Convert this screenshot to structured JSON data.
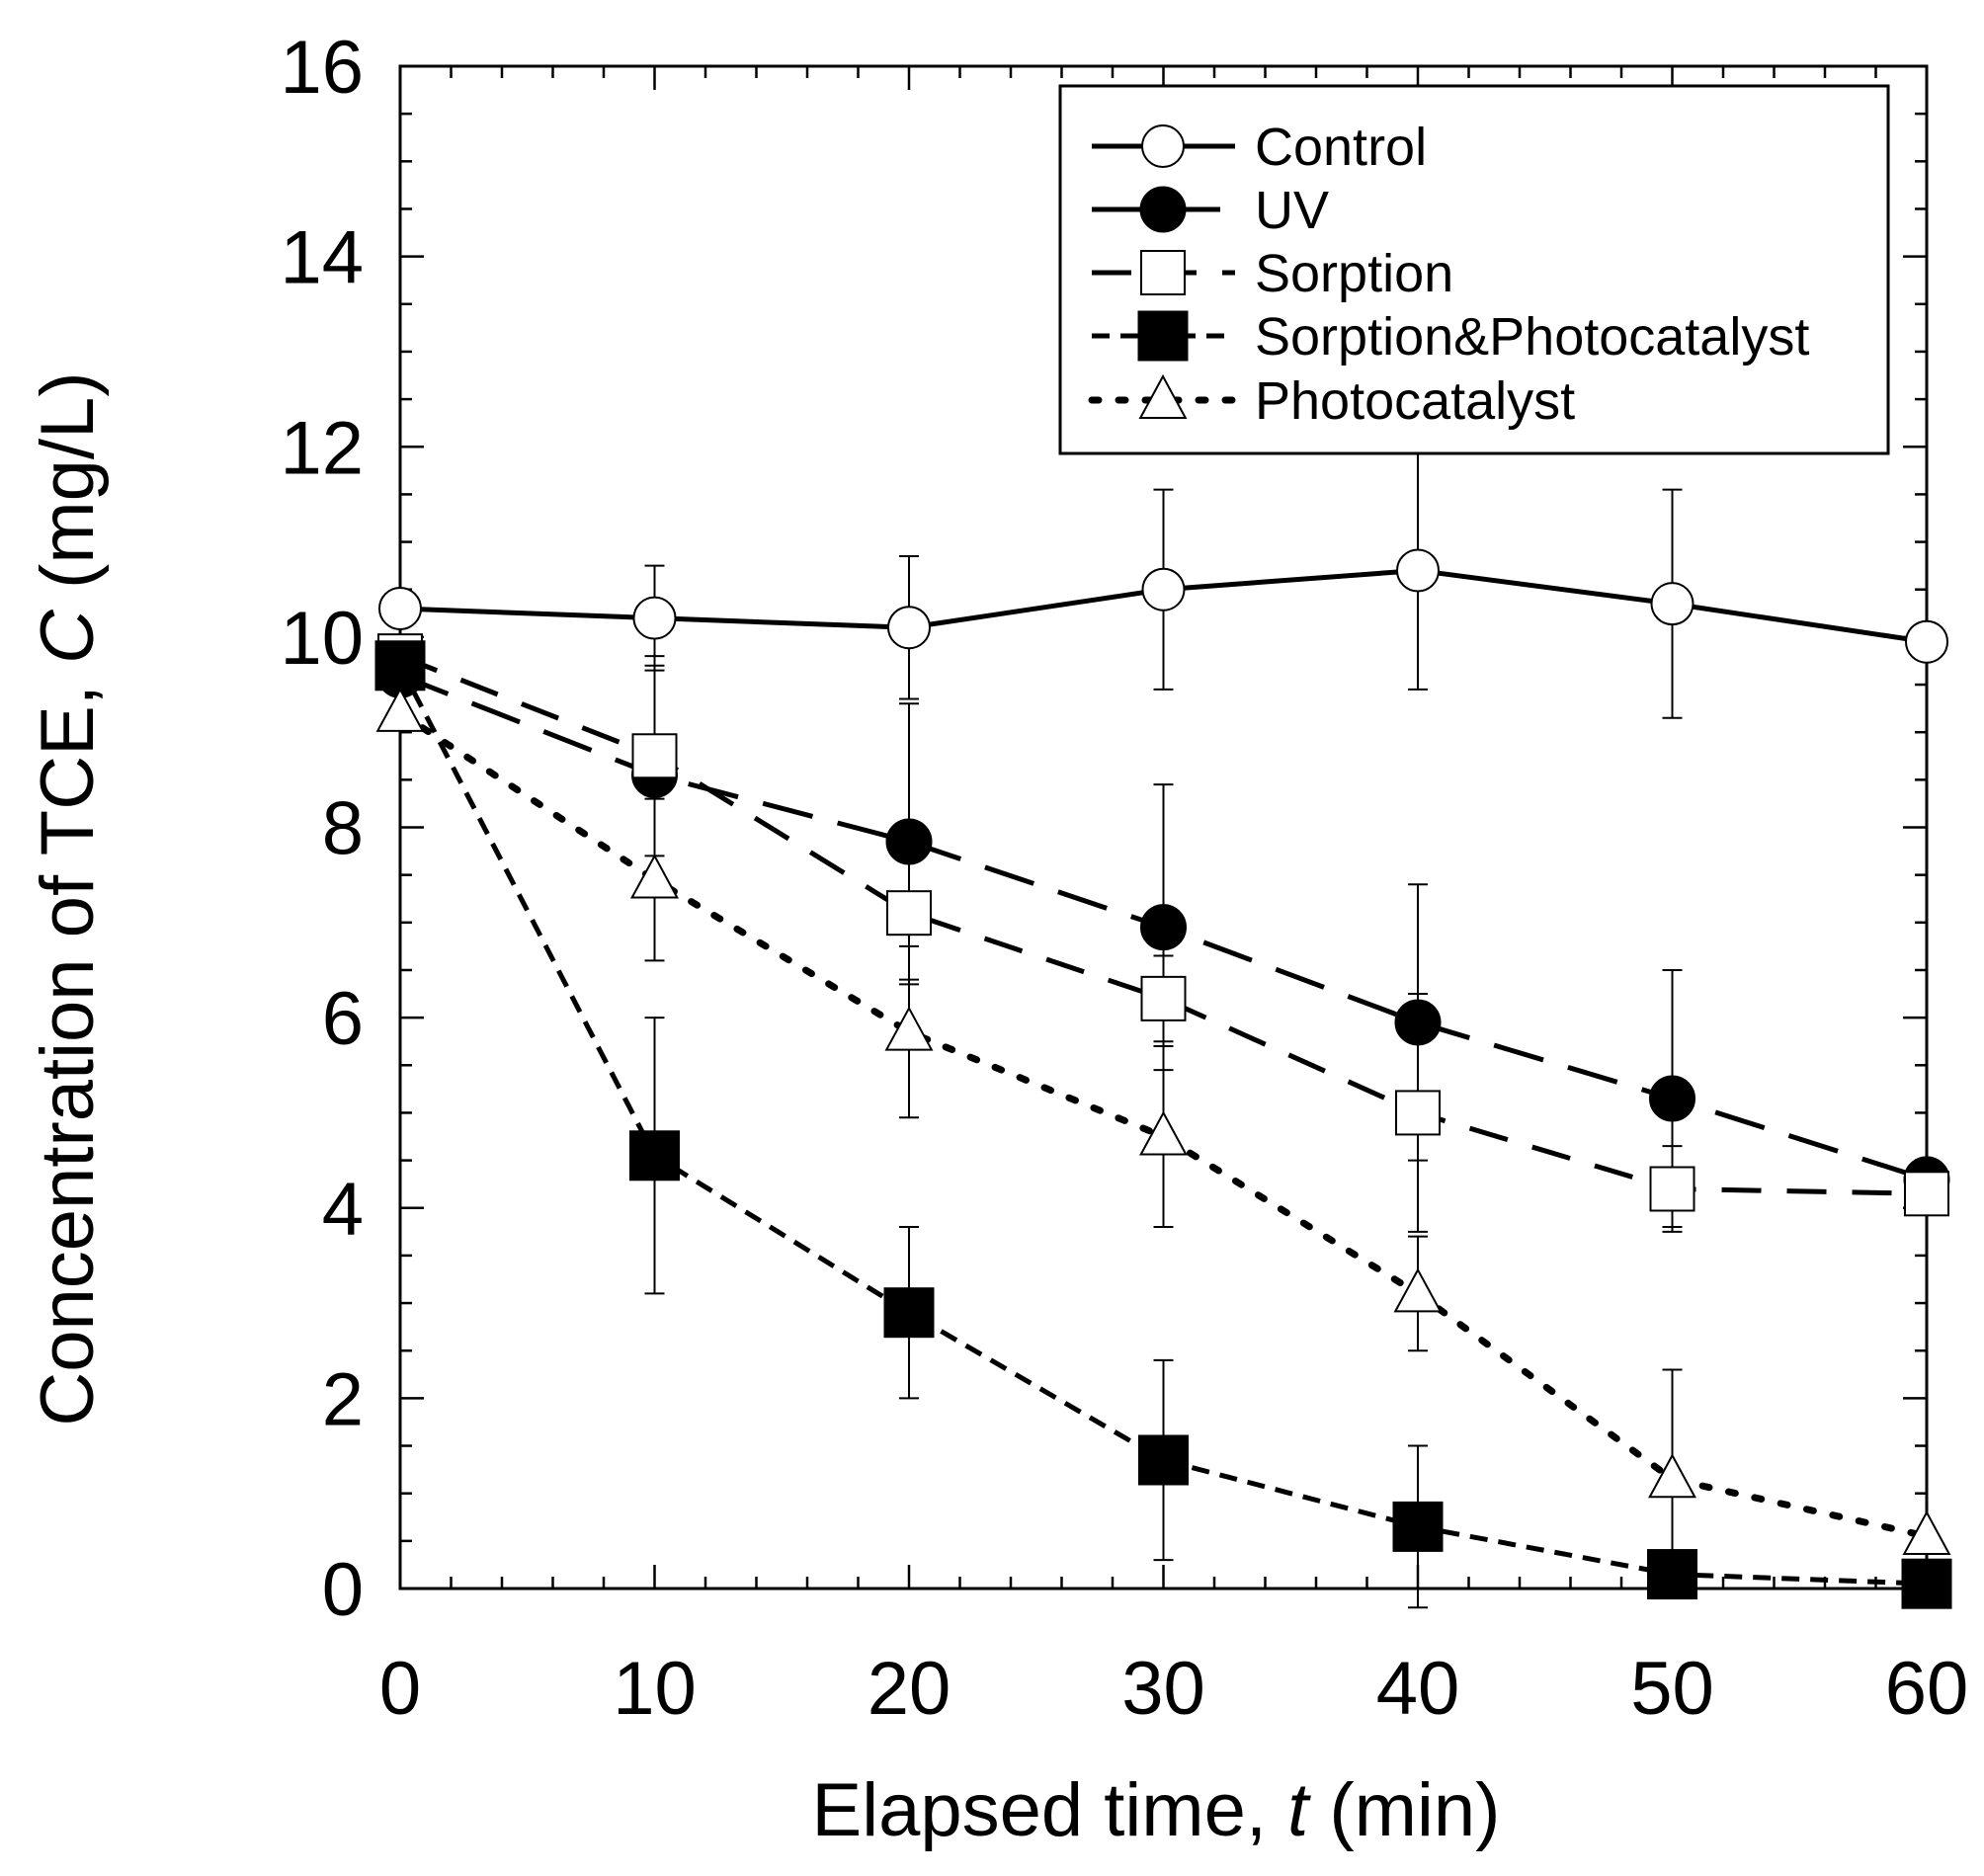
{
  "chart_data": {
    "type": "line",
    "title": "",
    "xlabel": "Elapsed time, ",
    "xlabel_var": "t",
    "xlabel_unit": " (min)",
    "ylabel": "Concentration of TCE,  ",
    "ylabel_var": "C",
    "ylabel_unit": " (mg/L)",
    "xlim": [
      0,
      60
    ],
    "ylim": [
      0,
      16
    ],
    "xticks": [
      0,
      10,
      20,
      30,
      40,
      50,
      60
    ],
    "xtick_labels": [
      "0",
      "10",
      "20",
      "30",
      "40",
      "50",
      "60"
    ],
    "yticks": [
      0,
      2,
      4,
      6,
      8,
      10,
      12,
      14,
      16
    ],
    "ytick_labels": [
      "0",
      "2",
      "4",
      "6",
      "8",
      "10",
      "12",
      "14",
      "16"
    ],
    "grid": false,
    "legend_position": "top-right",
    "x": [
      0,
      10,
      20,
      30,
      40,
      50,
      60
    ],
    "series": [
      {
        "name": "Control",
        "marker": "open-circle",
        "line": "solid",
        "values": [
          10.3,
          10.2,
          10.1,
          10.5,
          10.7,
          10.35,
          9.95
        ],
        "errors": [
          null,
          0.55,
          0.75,
          1.05,
          1.25,
          1.2,
          null
        ]
      },
      {
        "name": "UV",
        "marker": "filled-circle",
        "line": "long-dash",
        "values": [
          9.6,
          8.55,
          7.85,
          6.95,
          5.95,
          5.15,
          4.3
        ],
        "errors": [
          null,
          1.15,
          1.45,
          1.5,
          1.45,
          1.35,
          null
        ]
      },
      {
        "name": "Sorption",
        "marker": "open-square",
        "line": "dash",
        "values": [
          9.8,
          8.75,
          7.1,
          6.2,
          5.0,
          4.2,
          4.15
        ],
        "errors": [
          null,
          1.05,
          0.75,
          0.45,
          1.25,
          0.45,
          null
        ]
      },
      {
        "name": "Sorption&Photocatalyst",
        "marker": "filled-square",
        "line": "short-dash",
        "values": [
          9.7,
          4.55,
          2.9,
          1.35,
          0.65,
          0.15,
          0.05
        ],
        "errors": [
          null,
          1.45,
          0.9,
          1.05,
          0.85,
          null,
          null
        ]
      },
      {
        "name": "Photocatalyst",
        "marker": "open-triangle",
        "line": "dotted",
        "values": [
          9.2,
          7.45,
          5.85,
          4.75,
          3.1,
          1.15,
          0.55
        ],
        "errors": [
          null,
          0.85,
          0.9,
          0.95,
          0.6,
          1.15,
          null
        ]
      }
    ]
  }
}
